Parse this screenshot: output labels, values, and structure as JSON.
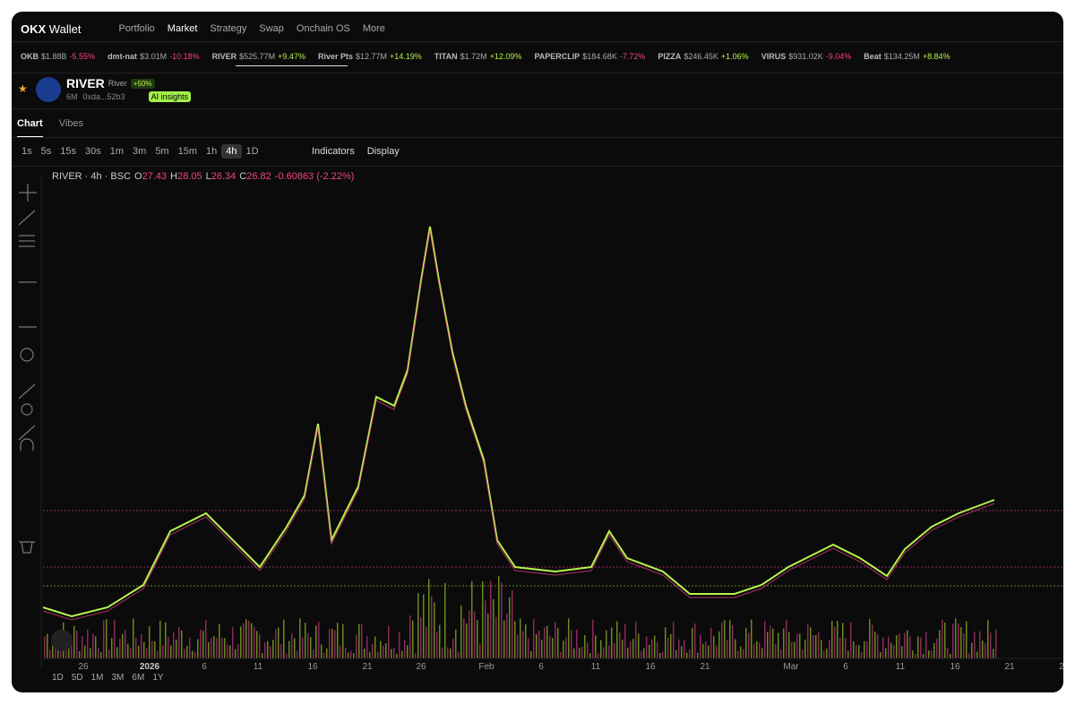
{
  "nav": {
    "brand": "Wallet",
    "items": [
      "Portfolio",
      "Market",
      "Strategy",
      "Swap",
      "Onchain OS",
      "More"
    ]
  },
  "ticker": [
    {
      "name": "OKB",
      "cap": "$1.88B",
      "change": "-5.55%"
    },
    {
      "name": "dmt-nat",
      "cap": "$3.01M",
      "change": "-10.18%"
    },
    {
      "name": "RIVER",
      "cap": "$525.77M",
      "change": "+9.47%"
    },
    {
      "name": "River Pts",
      "cap": "$12.77M",
      "change": "+14.19%"
    },
    {
      "name": "TITAN",
      "cap": "$1.72M",
      "change": "+12.09%"
    },
    {
      "name": "PAPERCLIP",
      "cap": "$184.68K",
      "change": "-7.72%"
    },
    {
      "name": "PIZZA",
      "cap": "$246.45K",
      "change": "+1.06%"
    },
    {
      "name": "VIRUS",
      "cap": "$931.02K",
      "change": "-9.04%"
    },
    {
      "name": "Beat",
      "cap": "$134.25M",
      "change": "+8.84%"
    }
  ],
  "token": {
    "name": "RIVER",
    "subname": "River",
    "badge": "+50%",
    "age": "6M",
    "address": "0xda...52b3",
    "ai": "AI insights"
  },
  "tabs": [
    "Chart",
    "Vibes"
  ],
  "intervals": [
    "1s",
    "5s",
    "15s",
    "30s",
    "1m",
    "3m",
    "5m",
    "15m",
    "1h",
    "4h",
    "1D"
  ],
  "toolbar": {
    "indicators": "Indicators",
    "display": "Display"
  },
  "legend": {
    "symbol": "RIVER · 4h · BSC",
    "ohlc": [
      {
        "label": "O",
        "value": "27.43"
      },
      {
        "label": "H",
        "value": "28.05"
      },
      {
        "label": "L",
        "value": "26.34"
      },
      {
        "label": "C",
        "value": "26.82"
      }
    ],
    "change": "-0.60863 (-2.22%)"
  },
  "x_axis": [
    "26",
    "2026",
    "6",
    "11",
    "16",
    "21",
    "26",
    "Feb",
    "6",
    "11",
    "16",
    "21",
    "Mar",
    "6",
    "11",
    "16",
    "21",
    "2"
  ],
  "ranges": [
    "1D",
    "5D",
    "1M",
    "3M",
    "6M",
    "1Y"
  ]
}
